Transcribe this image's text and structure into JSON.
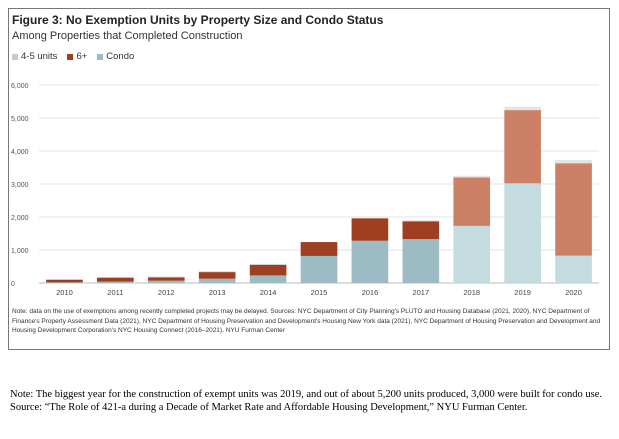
{
  "figure": {
    "title": "Figure 3: No Exemption Units by Property Size and Condo Status",
    "subtitle": "Among Properties that Completed Construction",
    "note": "Note: data on the use of exemptions among recently completed projects may be delayed. Sources: NYC Department of City Planning's PLUTO and Housing Database (2021, 2020), NYC Department of Finance's Property Assessment Data (2021), NYC Department of Housing Preservation and Development's Housing New York data (2021), NYC Department of Housing Preservation and Development and Housing Development Corporation's NYC Housing Connect (2016–2021), NYU Furman Center"
  },
  "caption": "Note: The biggest year for the construction of exempt units was 2019, and out of about 5,200 units produced, 3,000 were built for condo use. Source: “The Role of 421-a during a Decade of Market Rate and Affordable Housing Development,” NYU Furman Center.",
  "chart_data": {
    "type": "bar",
    "stacked": true,
    "title": "Figure 3: No Exemption Units by Property Size and Condo Status",
    "subtitle": "Among Properties that Completed Construction",
    "xlabel": "",
    "ylabel": "",
    "ylim": [
      0,
      6000
    ],
    "y_ticks": [
      0,
      1000,
      2000,
      3000,
      4000,
      5000,
      6000
    ],
    "y_tick_labels": [
      "0",
      "1,000",
      "2,000",
      "3,000",
      "4,000",
      "5,000",
      "6,000"
    ],
    "grid": true,
    "legend_position": "top-left",
    "categories": [
      "2010",
      "2011",
      "2012",
      "2013",
      "2014",
      "2015",
      "2016",
      "2017",
      "2018",
      "2019",
      "2020"
    ],
    "series": [
      {
        "name": "Condo",
        "color": "#9dbbc2",
        "values": [
          20,
          40,
          70,
          130,
          230,
          820,
          1280,
          1330,
          1730,
          3020,
          830
        ]
      },
      {
        "name": "6+",
        "color": "#9e3f22",
        "values": [
          80,
          120,
          100,
          200,
          320,
          420,
          680,
          540,
          1470,
          2220,
          2800
        ]
      },
      {
        "name": "4-5 units",
        "color": "#c9c9c9",
        "values": [
          10,
          20,
          20,
          20,
          20,
          0,
          0,
          20,
          50,
          100,
          100
        ]
      }
    ],
    "faded_categories": [
      "2018",
      "2019",
      "2020"
    ],
    "faded_colors": {
      "Condo": "#c4dbdf",
      "6+": "#cc8166",
      "4-5 units": "#e4e4e4"
    },
    "legend_order": [
      "4-5 units",
      "6+",
      "Condo"
    ]
  }
}
